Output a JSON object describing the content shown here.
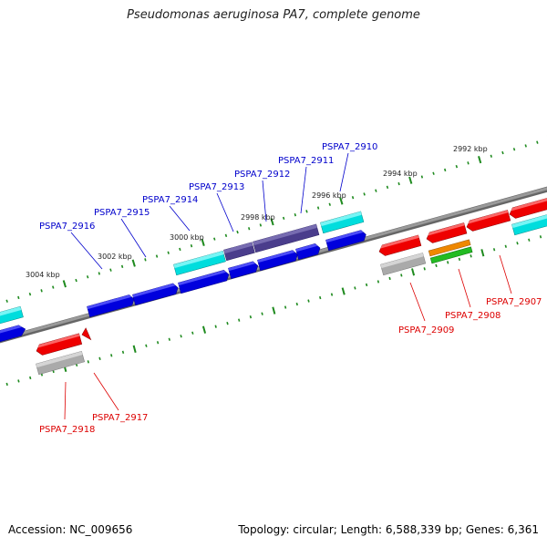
{
  "title": "Pseudomonas aeruginosa PA7, complete genome",
  "footer": {
    "accession": "Accession: NC_009656",
    "genome_info": "Topology: circular; Length: 6,588,339 bp; Genes: 6,361"
  },
  "colors": {
    "backbone": "#7a7a7a",
    "tick": "#1e8a1e",
    "label_forward": "#0000cc",
    "label_reverse": "#dd0000",
    "gene_blue": "#0000dd",
    "gene_cyan": "#00dddd",
    "gene_purple": "#4a3d8c",
    "gene_red": "#ee0000",
    "gene_gray": "#aaaaaa",
    "gene_orange": "#ee8800",
    "gene_green": "#22bb22"
  },
  "scale_labels_upper": [
    "3004 kbp",
    "3002 kbp",
    "3000 kbp",
    "2998 kbp",
    "2996 kbp",
    "2994 kbp",
    "2992 kbp"
  ],
  "gene_labels_forward": [
    "PSPA7_2916",
    "PSPA7_2915",
    "PSPA7_2914",
    "PSPA7_2913",
    "PSPA7_2912",
    "PSPA7_2911",
    "PSPA7_2910"
  ],
  "gene_labels_reverse": [
    "PSPA7_2918",
    "PSPA7_2917",
    "PSPA7_2909",
    "PSPA7_2908",
    "PSPA7_2907"
  ]
}
